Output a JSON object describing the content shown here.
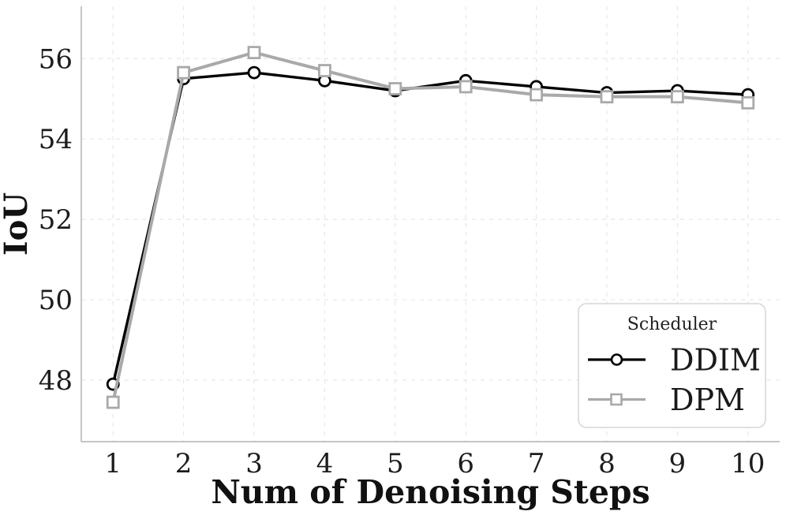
{
  "chart_data": {
    "type": "line",
    "title": "",
    "xlabel": "Num of Denoising Steps",
    "ylabel": "IoU",
    "x": [
      1,
      2,
      3,
      4,
      5,
      6,
      7,
      8,
      9,
      10
    ],
    "series": [
      {
        "name": "DDIM",
        "color": "#000000",
        "marker": "circle",
        "line_width": 3.4,
        "values": [
          47.9,
          55.5,
          55.65,
          55.45,
          55.2,
          55.45,
          55.3,
          55.15,
          55.2,
          55.1
        ]
      },
      {
        "name": "DPM",
        "color": "#a9a9a9",
        "marker": "square",
        "line_width": 4,
        "values": [
          47.45,
          55.65,
          56.15,
          55.7,
          55.25,
          55.3,
          55.1,
          55.05,
          55.05,
          54.9
        ]
      }
    ],
    "x_ticks": [
      "1",
      "2",
      "3",
      "4",
      "5",
      "6",
      "7",
      "8",
      "9",
      "10"
    ],
    "y_ticks": [
      "48",
      "50",
      "52",
      "54",
      "56"
    ],
    "xlim": [
      0.55,
      10.45
    ],
    "ylim": [
      46.47,
      57.3
    ],
    "grid": "dashed-lightgray",
    "legend": {
      "title": "Scheduler",
      "position": "lower-right"
    }
  }
}
